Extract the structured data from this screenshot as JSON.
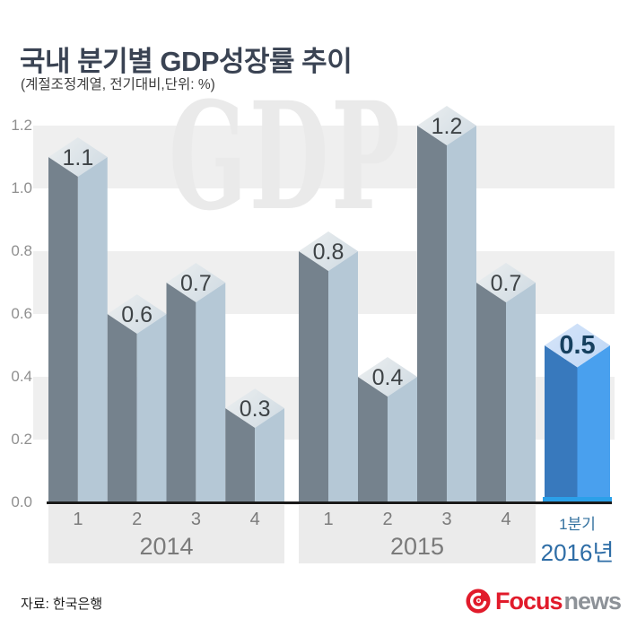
{
  "header": {
    "title": "국내 분기별 GDP성장률 추이",
    "subtitle": "(계절조정계열, 전기대비,단위: %)"
  },
  "watermark": "GDP",
  "footer": {
    "source_label": "자료: 한국은행",
    "logo": {
      "icon": "focus-swirl-icon",
      "brand": "Focus",
      "brand_suffix": "news"
    }
  },
  "colors": {
    "bar_dark": "#75828d",
    "bar_light": "#b5c8d6",
    "bar_cap_light": "#eceff0",
    "bar_cap_shade": "#d3dde4",
    "bar_label": "#3e4346",
    "highlight_dark": "#3879bd",
    "highlight_light": "#49a0ee",
    "highlight_cap_light": "#d6e5f9",
    "highlight_cap_shade": "#c2d9f6",
    "highlight_label": "#16405f",
    "highlight_axis": "#2ba0e9",
    "axis_line": "#1b1b1b",
    "grid_band": "#efefef",
    "xband_bg": "#ebebeb",
    "tick_text": "#8f8f8f",
    "quarter_text": "#7b7b7b",
    "highlight_quarter_text": "#33719f",
    "highlight_year_text": "#2e6da6",
    "brand_red": "#e11b2b",
    "brand_gray": "#8d9298",
    "title_text": "#3a4353"
  },
  "chart_data": {
    "type": "bar",
    "title": "국내 분기별 GDP성장률 추이",
    "subtitle_note": "(계절조정계열, 전기대비,단위: %)",
    "ylabel": "",
    "xlabel": "",
    "ylim": [
      0.0,
      1.2
    ],
    "yticks": [
      "0.0",
      "0.2",
      "0.4",
      "0.6",
      "0.8",
      "1.0",
      "1.2"
    ],
    "grid": "alternating horizontal bands of 0.2",
    "legend": "none",
    "style": "isometric 3D columns with diamond caps, value labels on caps",
    "groups": [
      {
        "year": "2014",
        "categories": [
          "1",
          "2",
          "3",
          "4"
        ],
        "values": [
          1.1,
          0.6,
          0.7,
          0.3
        ],
        "highlight": false
      },
      {
        "year": "2015",
        "categories": [
          "1",
          "2",
          "3",
          "4"
        ],
        "values": [
          0.8,
          0.4,
          1.2,
          0.7
        ],
        "highlight": false
      },
      {
        "year": "2016년",
        "categories": [
          "1분기"
        ],
        "values": [
          0.5
        ],
        "highlight": true
      }
    ]
  }
}
